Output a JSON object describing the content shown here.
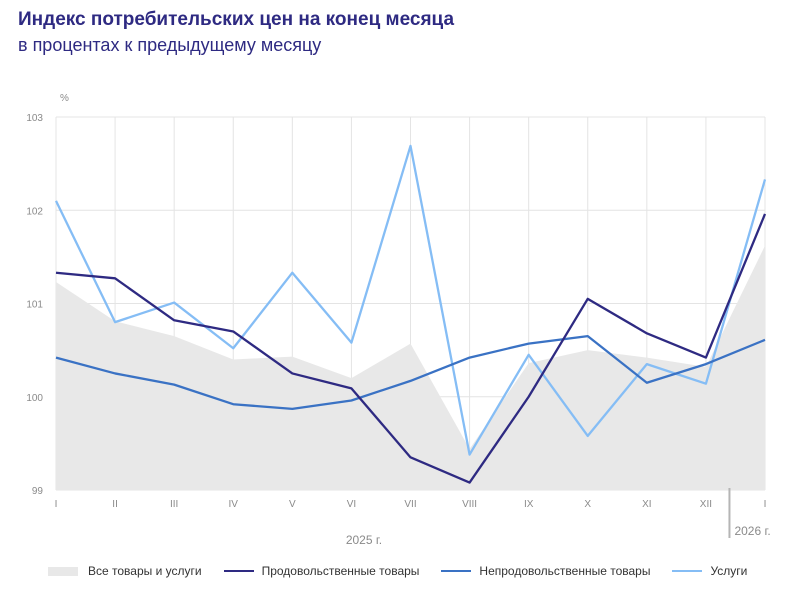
{
  "header": {
    "title": "Индекс потребительских цен на конец месяца",
    "subtitle": "в процентах к предыдущему месяцу"
  },
  "colors": {
    "all_goods_area": "#e8e8e8",
    "food": "#2e2a82",
    "nonfood": "#3a72c4",
    "services": "#85bdf5",
    "grid": "#e4e4e4",
    "title": "#2e2a82"
  },
  "chart_data": {
    "type": "line",
    "ylabel": "%",
    "ylim": [
      99,
      103
    ],
    "yticks": [
      "99",
      "100",
      "101",
      "102",
      "103"
    ],
    "categories": [
      "I",
      "II",
      "III",
      "IV",
      "V",
      "VI",
      "VII",
      "VIII",
      "IX",
      "X",
      "XI",
      "XII",
      "I"
    ],
    "year_labels": [
      "2025 г.",
      "2026 г."
    ],
    "grid": true,
    "legend_position": "bottom",
    "series": [
      {
        "name": "Все товары и услуги",
        "kind": "area",
        "values": [
          101.23,
          100.81,
          100.65,
          100.4,
          100.43,
          100.2,
          100.57,
          99.44,
          100.36,
          100.5,
          100.42,
          100.32,
          101.62
        ]
      },
      {
        "name": "Продовольственные товары",
        "kind": "line",
        "values": [
          101.33,
          101.27,
          100.82,
          100.7,
          100.25,
          100.09,
          99.35,
          99.08,
          100.0,
          101.05,
          100.68,
          100.42,
          101.96
        ]
      },
      {
        "name": "Непродовольственные товары",
        "kind": "line",
        "values": [
          100.42,
          100.25,
          100.13,
          99.92,
          99.87,
          99.96,
          100.17,
          100.42,
          100.57,
          100.65,
          100.15,
          100.35,
          100.61
        ]
      },
      {
        "name": "Услуги",
        "kind": "line",
        "values": [
          102.1,
          100.8,
          101.01,
          100.52,
          101.33,
          100.58,
          102.69,
          99.38,
          100.45,
          99.58,
          100.35,
          100.14,
          102.33
        ]
      }
    ]
  }
}
